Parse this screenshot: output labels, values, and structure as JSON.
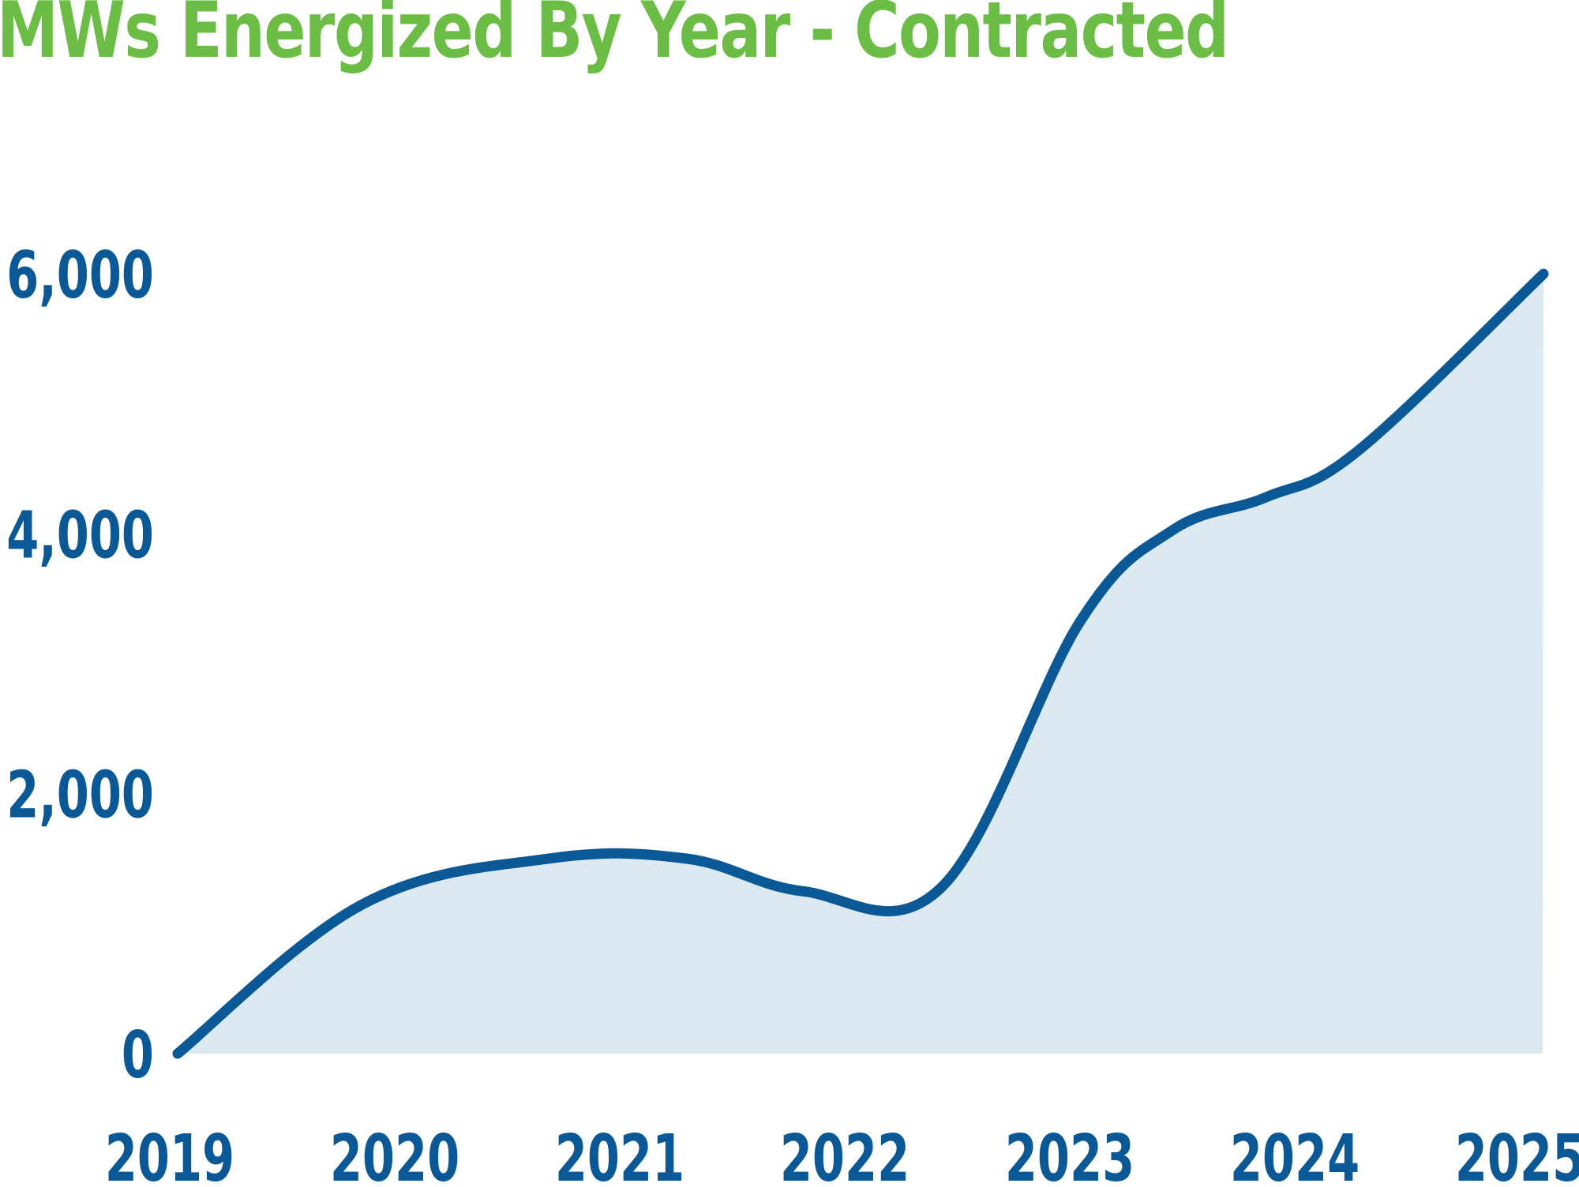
{
  "chart_data": {
    "type": "area",
    "title": "MWs Energized By Year - Contracted",
    "xlabel": "",
    "ylabel": "",
    "categories": [
      "2019",
      "2020",
      "2021",
      "2022",
      "2023",
      "2024",
      "2025"
    ],
    "x_tick_labels": [
      "2019",
      "2020",
      "2021",
      "2022",
      "2023",
      "2024",
      "2025"
    ],
    "y_tick_labels": [
      "0",
      "2,000",
      "4,000",
      "6,000"
    ],
    "y_ticks": [
      0,
      2000,
      4000,
      6000
    ],
    "ylim": [
      0,
      6000
    ],
    "points": [
      {
        "x": 2019.0,
        "y": 0
      },
      {
        "x": 2019.8,
        "y": 1150
      },
      {
        "x": 2020.6,
        "y": 1500
      },
      {
        "x": 2021.2,
        "y": 1500
      },
      {
        "x": 2021.7,
        "y": 1250
      },
      {
        "x": 2022.3,
        "y": 1280
      },
      {
        "x": 2022.9,
        "y": 3330
      },
      {
        "x": 2023.3,
        "y": 4030
      },
      {
        "x": 2023.7,
        "y": 4280
      },
      {
        "x": 2024.1,
        "y": 4640
      },
      {
        "x": 2024.9,
        "y": 6000
      }
    ],
    "grid": false,
    "legend": "none",
    "colors": {
      "line": "#0a5896",
      "fill": "#dce9f1",
      "title": "#6cbd45",
      "ticks": "#0a5896"
    }
  }
}
